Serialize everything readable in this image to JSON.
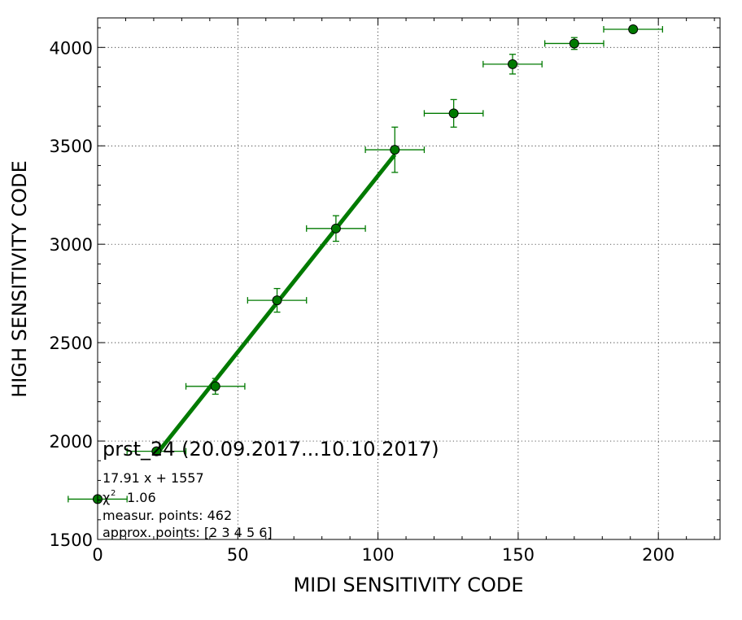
{
  "chart_data": {
    "type": "scatter",
    "xlabel": "MIDI SENSITIVITY CODE",
    "ylabel": "HIGH SENSITIVITY CODE",
    "xlim": [
      0,
      222
    ],
    "ylim": [
      1500,
      4150
    ],
    "xticks": [
      0,
      50,
      100,
      150,
      200
    ],
    "yticks": [
      1500,
      2000,
      2500,
      3000,
      3500,
      4000
    ],
    "grid": true,
    "series": [
      {
        "color": "#007a00",
        "marker": "circle",
        "points": [
          {
            "x": 0,
            "y": 1705,
            "xerr": 10.5,
            "yerr": 0
          },
          {
            "x": 21,
            "y": 1948,
            "xerr": 10.5,
            "yerr": 10
          },
          {
            "x": 42,
            "y": 2278,
            "xerr": 10.5,
            "yerr": 40
          },
          {
            "x": 64,
            "y": 2715,
            "xerr": 10.5,
            "yerr": 60
          },
          {
            "x": 85,
            "y": 3080,
            "xerr": 10.5,
            "yerr": 65
          },
          {
            "x": 106,
            "y": 3480,
            "xerr": 10.5,
            "yerr": 115
          },
          {
            "x": 127,
            "y": 3665,
            "xerr": 10.5,
            "yerr": 70
          },
          {
            "x": 148,
            "y": 3915,
            "xerr": 10.5,
            "yerr": 50
          },
          {
            "x": 170,
            "y": 4020,
            "xerr": 10.5,
            "yerr": 30
          },
          {
            "x": 191,
            "y": 4092,
            "xerr": 10.5,
            "yerr": 10
          }
        ]
      }
    ],
    "fit_line": {
      "slope": 17.91,
      "intercept": 1557,
      "x_range": [
        21,
        106
      ],
      "color": "#007a00"
    },
    "annotation": {
      "title": "prst_24 (20.09.2017...10.10.2017)",
      "equation": "17.91 x + 1557",
      "chi_symbol": "χ",
      "chi_sup": "2",
      "chi_value": "1.06",
      "measur_points": "measur. points: 462",
      "approx_points": "approx. points: [2 3 4 5 6]"
    }
  }
}
